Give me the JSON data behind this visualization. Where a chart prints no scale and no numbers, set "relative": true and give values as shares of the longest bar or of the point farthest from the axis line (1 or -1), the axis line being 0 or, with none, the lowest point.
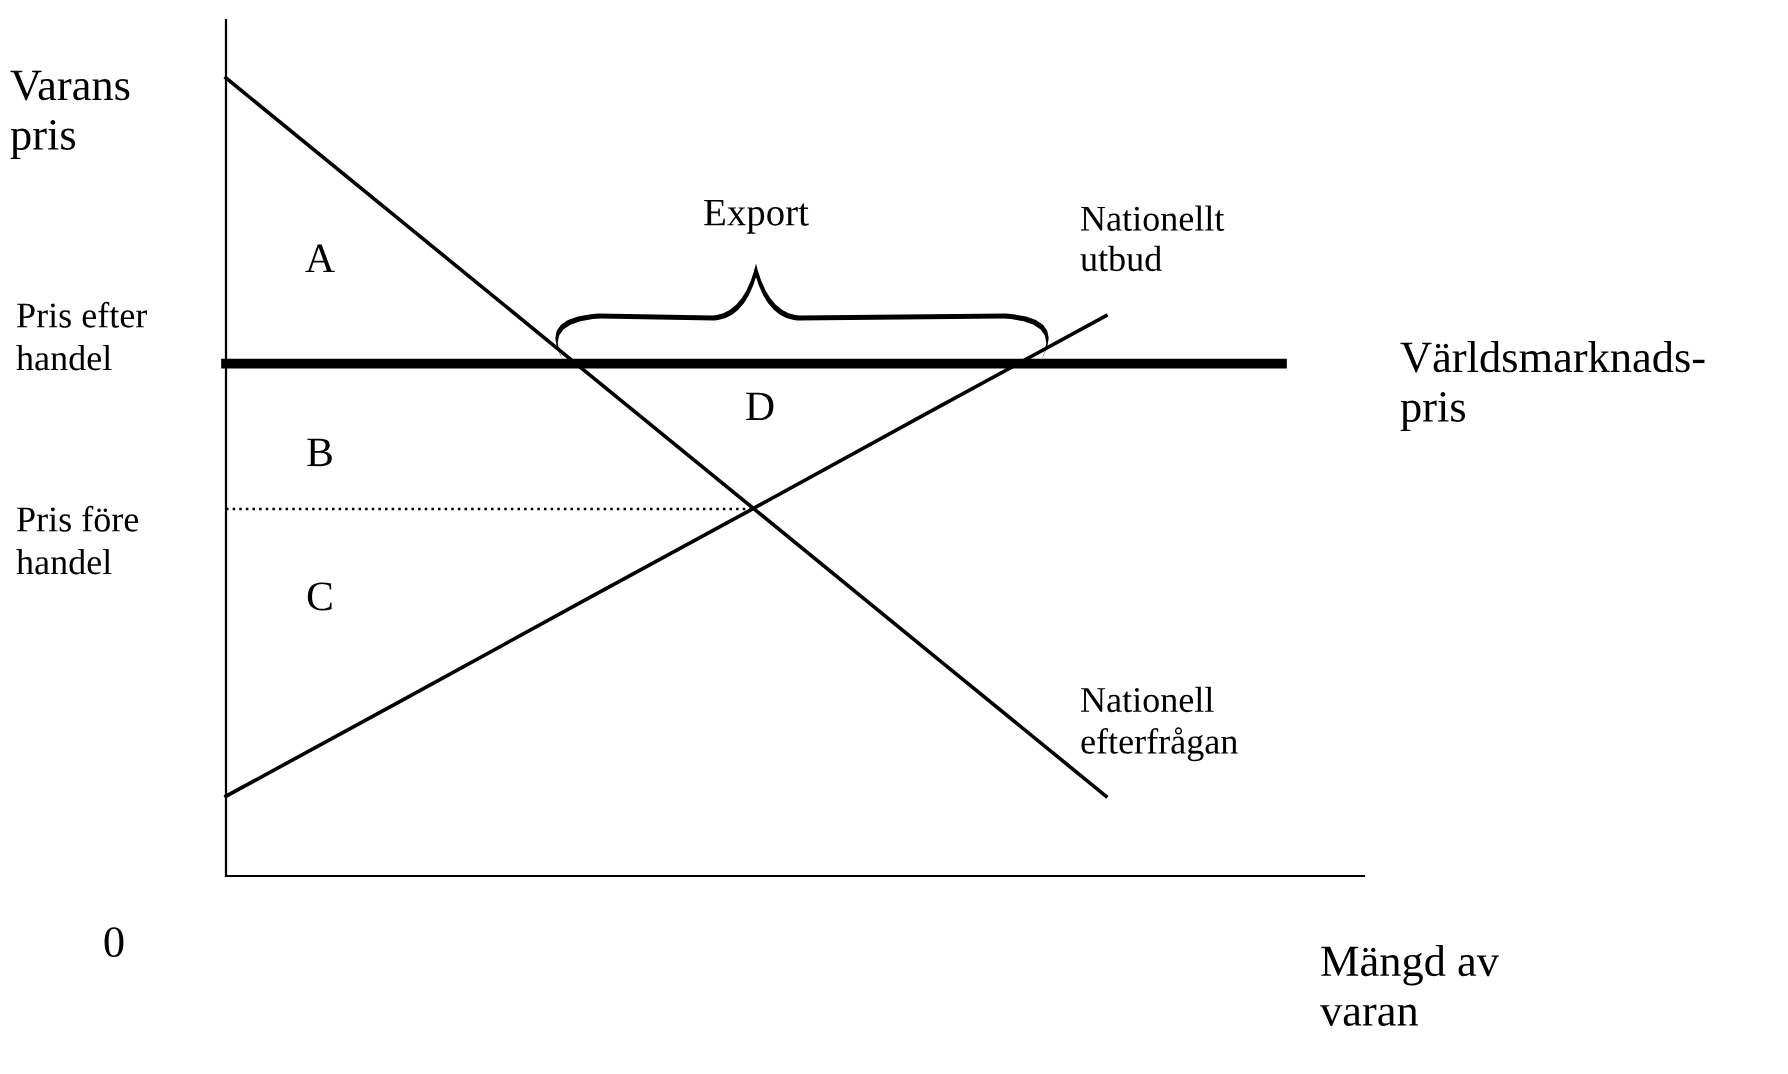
{
  "chart_data": {
    "type": "line",
    "relative": true,
    "xlabel": "Mängd av\nvaran",
    "ylabel": "Varans\npris",
    "categories": [
      null,
      null,
      null,
      null,
      null,
      null,
      null
    ],
    "series": [
      {
        "name": "Nationell\nefterfrågan",
        "color": "#000000",
        "values": [
          1,
          0.82,
          0.64,
          0.46,
          0.28,
          0.1,
          null
        ]
      },
      {
        "name": "Nationellt\nutbud",
        "color": "#000000",
        "values": [
          0.1,
          0.22,
          0.341,
          0.461,
          0.582,
          0.702,
          null
        ]
      },
      {
        "name": "Världsmarknads-\npris",
        "color": "#000000",
        "values": [
          0.642,
          0.642,
          0.642,
          0.642,
          0.642,
          0.642,
          0.642
        ]
      },
      {
        "color": "#000000",
        "line_style": "dotted",
        "values": [
          0.46,
          0.46,
          0.46,
          0.46,
          null,
          null,
          null
        ]
      }
    ],
    "annotations": [
      "0",
      "Pris efter\nhandel",
      "Pris före\nhandel",
      "A",
      "B",
      "C",
      "D",
      "Export"
    ]
  }
}
